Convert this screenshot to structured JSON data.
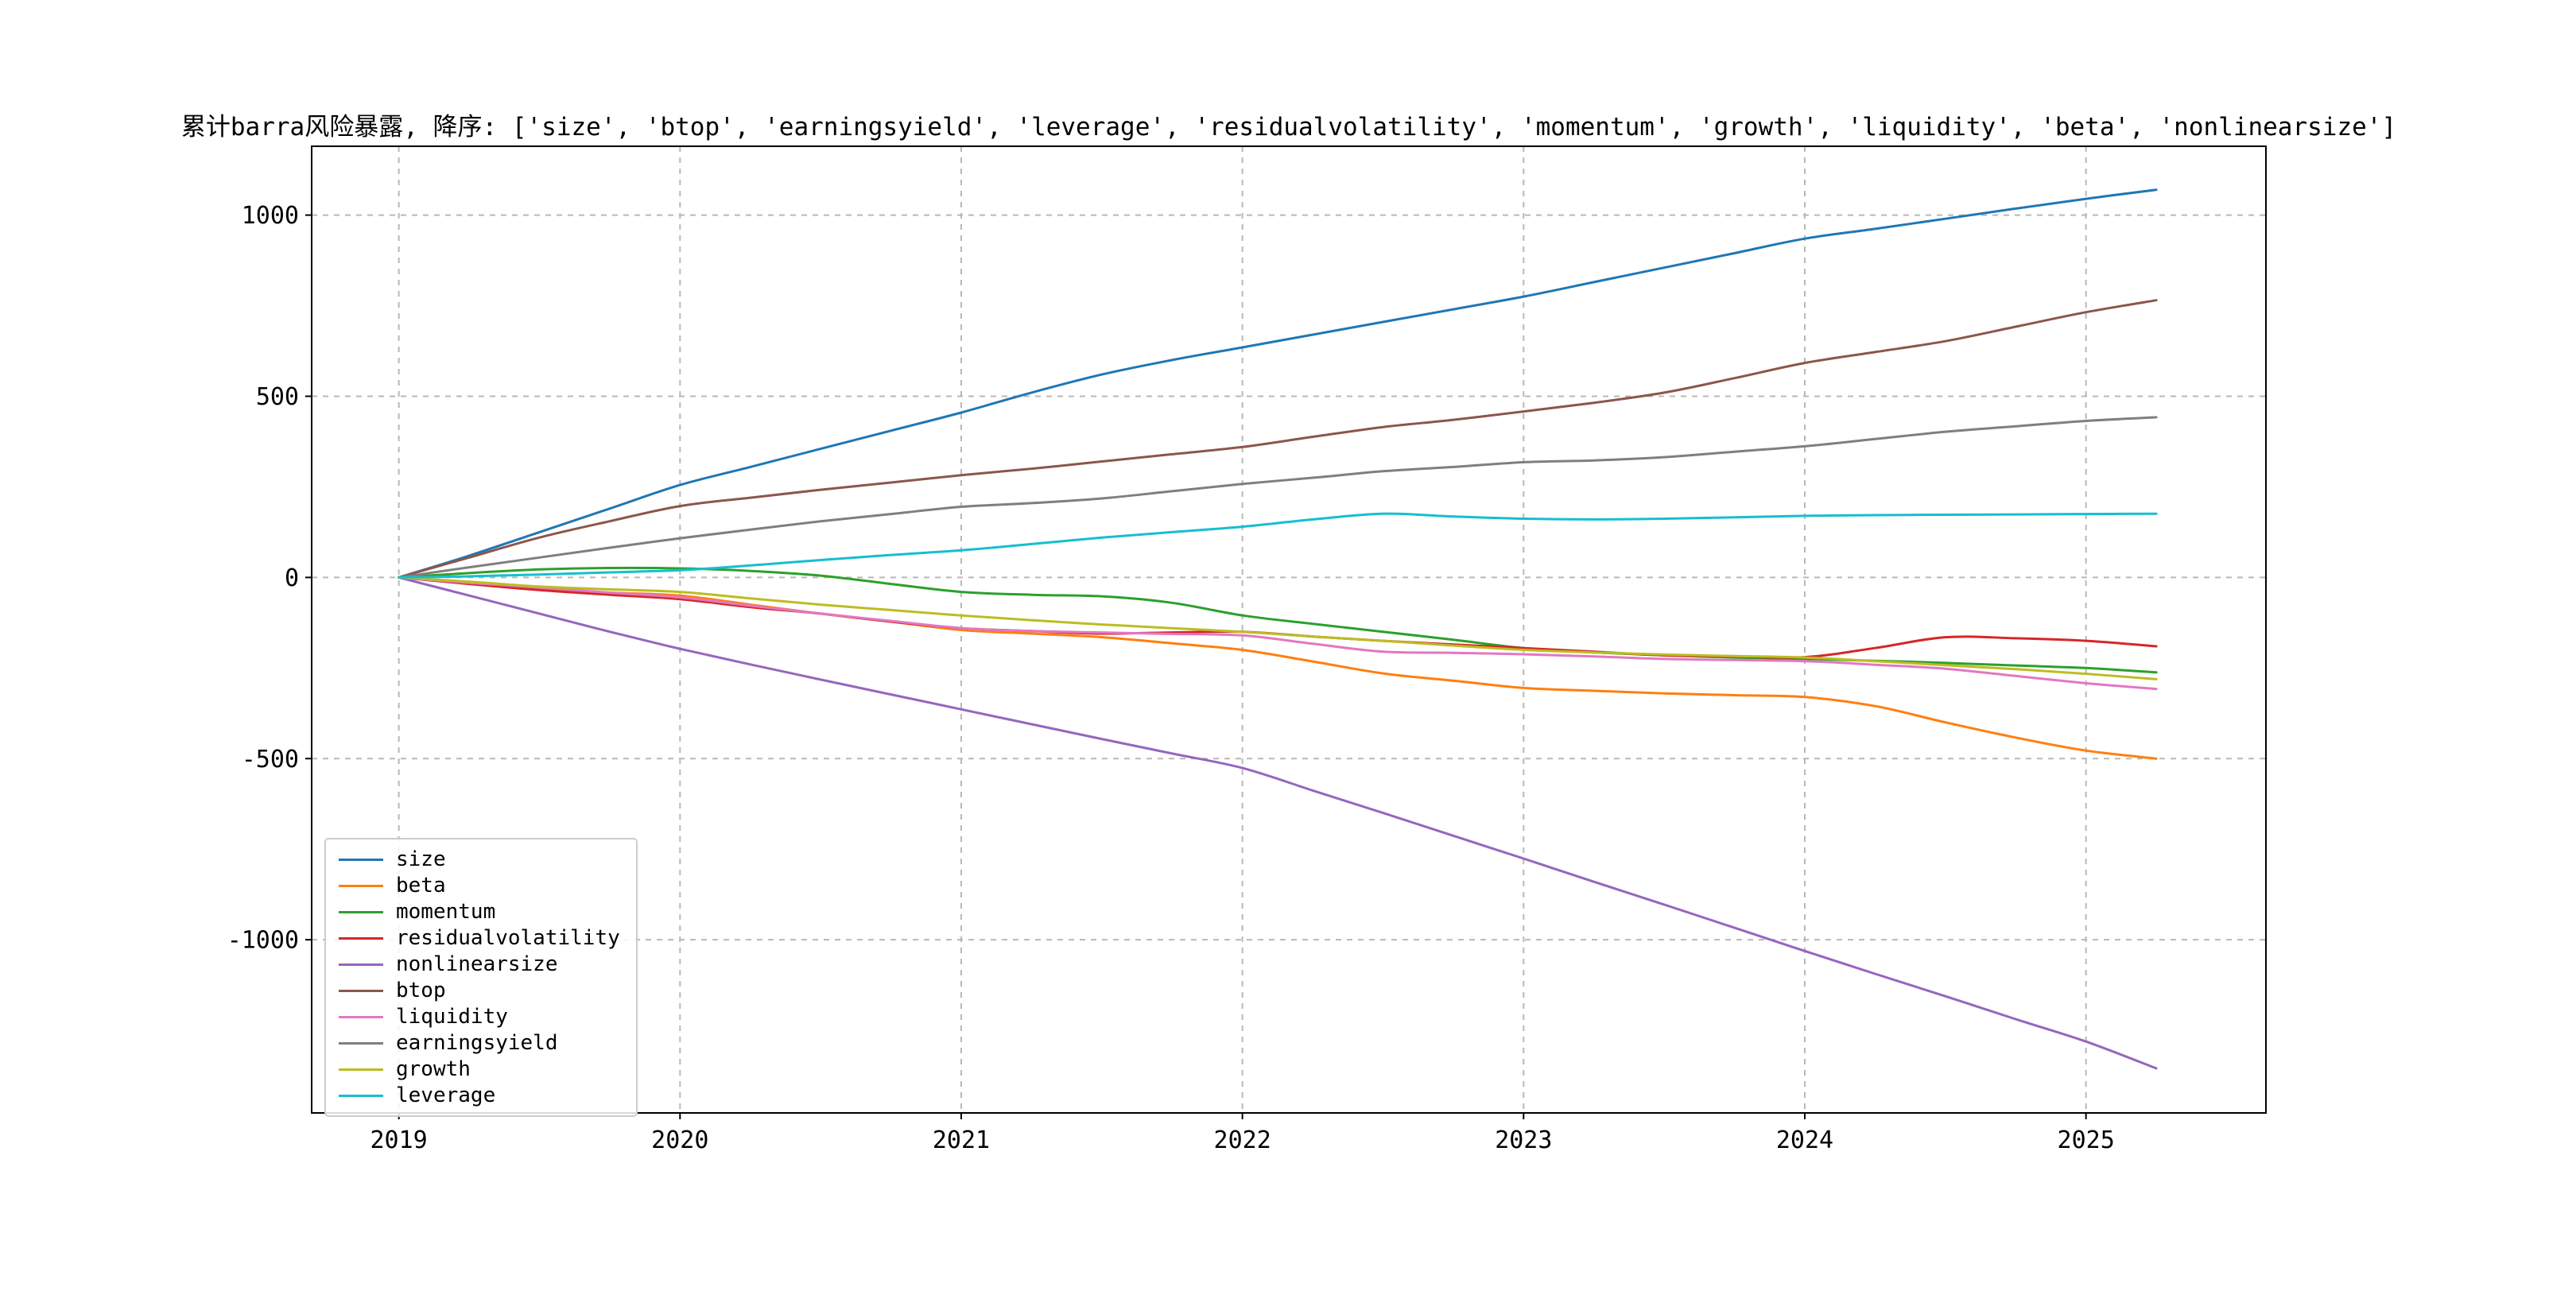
{
  "chart_data": {
    "type": "line",
    "title": "累计barra风险暴露, 降序: ['size', 'btop', 'earningsyield', 'leverage', 'residualvolatility', 'momentum', 'growth', 'liquidity', 'beta', 'nonlinearsize']",
    "xlabel": "",
    "ylabel": "",
    "grid": true,
    "grid_color": "#b8b8b8",
    "background": "#ffffff",
    "legend_position": "lower-left",
    "xlim": [
      2018.69,
      2025.64
    ],
    "ylim": [
      -1478,
      1190
    ],
    "xticks": [
      2019,
      2020,
      2021,
      2022,
      2023,
      2024,
      2025
    ],
    "xtick_labels": [
      "2019",
      "2020",
      "2021",
      "2022",
      "2023",
      "2024",
      "2025"
    ],
    "yticks": [
      -1000,
      -500,
      0,
      500,
      1000
    ],
    "ytick_labels": [
      "-1000",
      "-500",
      "0",
      "500",
      "1000"
    ],
    "x": [
      2019.0,
      2019.25,
      2019.5,
      2019.75,
      2020.0,
      2020.25,
      2020.5,
      2020.75,
      2021.0,
      2021.25,
      2021.5,
      2021.75,
      2022.0,
      2022.25,
      2022.5,
      2022.75,
      2023.0,
      2023.25,
      2023.5,
      2023.75,
      2024.0,
      2024.25,
      2024.5,
      2024.75,
      2025.0,
      2025.25
    ],
    "series": [
      {
        "name": "size",
        "color": "#1f77b4",
        "values": [
          0,
          60,
          125,
          190,
          255,
          305,
          355,
          405,
          455,
          510,
          560,
          600,
          635,
          670,
          705,
          740,
          775,
          815,
          855,
          895,
          935,
          962,
          990,
          1018,
          1045,
          1070
        ]
      },
      {
        "name": "beta",
        "color": "#ff7f0e",
        "values": [
          0,
          -15,
          -32,
          -42,
          -50,
          -75,
          -100,
          -122,
          -145,
          -155,
          -165,
          -182,
          -200,
          -232,
          -265,
          -285,
          -305,
          -313,
          -320,
          -325,
          -330,
          -355,
          -400,
          -442,
          -478,
          -500
        ]
      },
      {
        "name": "momentum",
        "color": "#2ca02c",
        "values": [
          0,
          12,
          22,
          26,
          25,
          18,
          5,
          -18,
          -40,
          -48,
          -52,
          -70,
          -105,
          -128,
          -150,
          -172,
          -195,
          -207,
          -215,
          -221,
          -225,
          -230,
          -236,
          -243,
          -250,
          -262
        ]
      },
      {
        "name": "residualvolatility",
        "color": "#d62728",
        "values": [
          0,
          -18,
          -35,
          -48,
          -60,
          -82,
          -100,
          -122,
          -140,
          -148,
          -155,
          -152,
          -150,
          -163,
          -175,
          -185,
          -195,
          -205,
          -215,
          -218,
          -220,
          -195,
          -165,
          -168,
          -175,
          -190
        ]
      },
      {
        "name": "nonlinearsize",
        "color": "#9467bd",
        "values": [
          0,
          -50,
          -100,
          -150,
          -197,
          -240,
          -282,
          -323,
          -364,
          -405,
          -446,
          -486,
          -526,
          -588,
          -650,
          -713,
          -776,
          -840,
          -903,
          -967,
          -1031,
          -1094,
          -1156,
          -1219,
          -1281,
          -1355
        ]
      },
      {
        "name": "btop",
        "color": "#8c564b",
        "values": [
          0,
          55,
          110,
          155,
          197,
          220,
          242,
          262,
          282,
          300,
          320,
          340,
          360,
          388,
          415,
          435,
          458,
          482,
          510,
          550,
          592,
          622,
          652,
          692,
          732,
          765
        ]
      },
      {
        "name": "liquidity",
        "color": "#e377c2",
        "values": [
          0,
          -15,
          -28,
          -42,
          -55,
          -78,
          -100,
          -120,
          -140,
          -148,
          -152,
          -156,
          -160,
          -183,
          -205,
          -208,
          -212,
          -218,
          -225,
          -228,
          -231,
          -241,
          -252,
          -272,
          -292,
          -308
        ]
      },
      {
        "name": "earningsyield",
        "color": "#7f7f7f",
        "values": [
          0,
          28,
          55,
          82,
          108,
          132,
          155,
          175,
          195,
          205,
          218,
          238,
          258,
          275,
          293,
          305,
          318,
          323,
          332,
          347,
          362,
          382,
          402,
          417,
          432,
          442
        ]
      },
      {
        "name": "growth",
        "color": "#bcbd22",
        "values": [
          0,
          -12,
          -25,
          -33,
          -40,
          -58,
          -75,
          -90,
          -105,
          -118,
          -130,
          -140,
          -150,
          -163,
          -175,
          -188,
          -200,
          -207,
          -213,
          -217,
          -221,
          -231,
          -242,
          -253,
          -266,
          -281
        ]
      },
      {
        "name": "leverage",
        "color": "#17becf",
        "values": [
          0,
          3,
          8,
          14,
          20,
          33,
          48,
          62,
          75,
          92,
          110,
          125,
          140,
          160,
          176,
          168,
          162,
          160,
          162,
          166,
          170,
          172,
          173,
          174,
          175,
          176
        ]
      }
    ]
  }
}
